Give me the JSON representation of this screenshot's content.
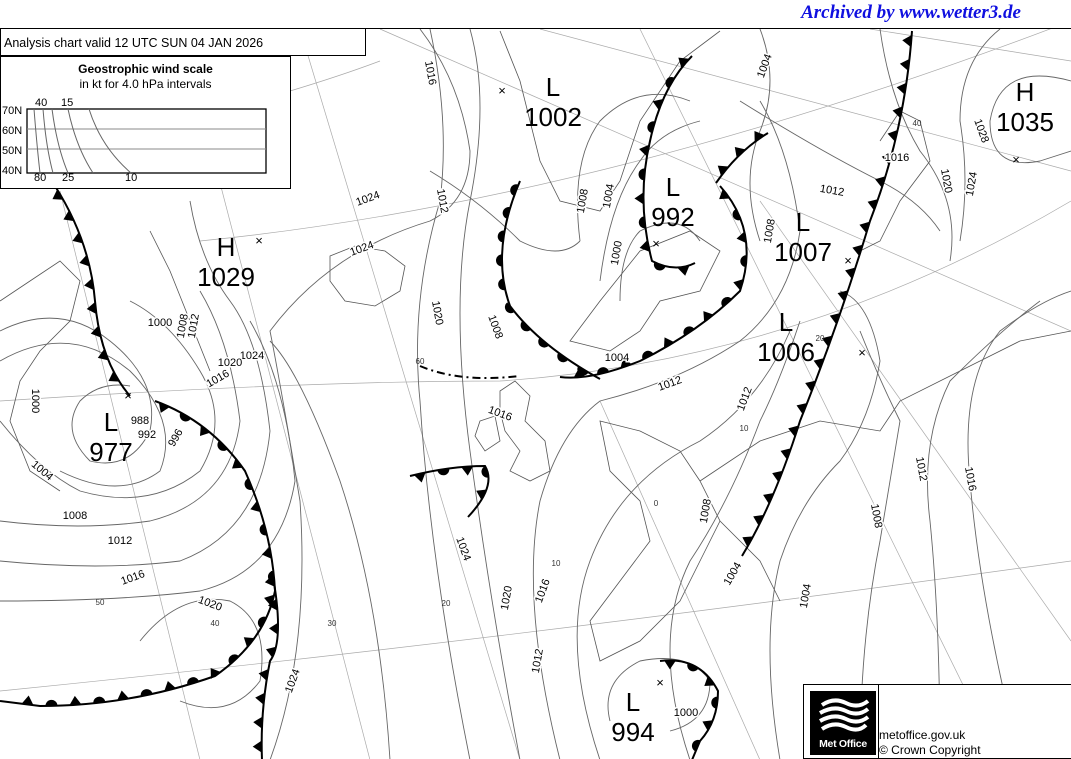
{
  "header": {
    "archive_text": "Archived by www.wetter3.de",
    "archive_color": "#1010e0"
  },
  "chart_title": "Analysis chart  valid 12 UTC SUN 04  JAN 2026",
  "wind_scale": {
    "title": "Geostrophic wind scale",
    "subtitle": "in kt for 4.0 hPa intervals",
    "latitudes": [
      "70N",
      "60N",
      "50N",
      "40N"
    ],
    "top_labels": [
      "40",
      "15"
    ],
    "bottom_labels": [
      "80",
      "25",
      "10"
    ]
  },
  "pressure_centres": [
    {
      "type": "L",
      "value": "1002"
    },
    {
      "type": "L",
      "value": "992"
    },
    {
      "type": "L",
      "value": "1007"
    },
    {
      "type": "H",
      "value": "1035"
    },
    {
      "type": "H",
      "value": "1029"
    },
    {
      "type": "L",
      "value": "1006"
    },
    {
      "type": "L",
      "value": "977"
    },
    {
      "type": "L",
      "value": "994"
    }
  ],
  "isobar_labels": [
    "1016",
    "1012",
    "1024",
    "1024",
    "1020",
    "1024",
    "1020",
    "1016",
    "1000",
    "1008",
    "1012",
    "988",
    "992",
    "996",
    "1000",
    "1004",
    "1008",
    "1012",
    "1016",
    "1020",
    "1024",
    "1024",
    "1020",
    "1016",
    "1012",
    "1016",
    "1008",
    "1004",
    "1012",
    "1012",
    "1008",
    "1004",
    "1004",
    "1008",
    "1012",
    "1016",
    "1000",
    "1004",
    "1008",
    "1004",
    "1000",
    "1008",
    "1012",
    "1016",
    "1020",
    "1024",
    "1028"
  ],
  "graticule_labels": [
    "50",
    "40",
    "30",
    "20",
    "10",
    "10",
    "20",
    "40",
    "60",
    "0"
  ],
  "footer": {
    "brand": "Met Office",
    "site": "metoffice.gov.uk",
    "copyright": "© Crown Copyright"
  }
}
